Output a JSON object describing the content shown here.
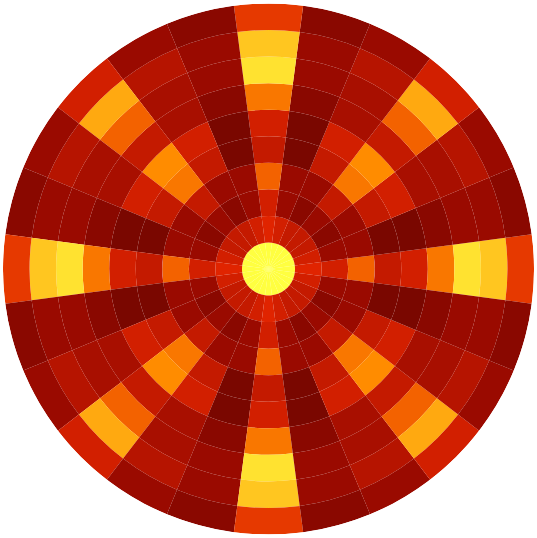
{
  "chart_data": {
    "type": "polar_heatmap",
    "r_edges": [
      0,
      0.1,
      0.2,
      0.3,
      0.4,
      0.5,
      0.6,
      0.7,
      0.8,
      0.9,
      1.0
    ],
    "theta_centers": [
      0,
      15,
      30,
      45,
      60,
      75,
      90,
      105,
      120,
      135,
      150,
      165,
      180,
      195,
      210,
      225,
      240,
      255,
      270,
      285,
      300,
      315,
      330,
      345
    ],
    "cells": [
      [
        1,
        1,
        1,
        1,
        1,
        1,
        1,
        1,
        1,
        1,
        1,
        1,
        1,
        1,
        1,
        1,
        1,
        1,
        1,
        1,
        1,
        1,
        1,
        1
      ],
      [
        0.55,
        0.5,
        0.45,
        0.45,
        0.45,
        0.5,
        0.55,
        0.5,
        0.45,
        0.45,
        0.45,
        0.5,
        0.55,
        0.5,
        0.45,
        0.45,
        0.45,
        0.5,
        0.55,
        0.5,
        0.45,
        0.45,
        0.45,
        0.5
      ],
      [
        0.5,
        0.3,
        0.25,
        0.3,
        0.25,
        0.3,
        0.5,
        0.3,
        0.25,
        0.3,
        0.25,
        0.3,
        0.5,
        0.3,
        0.25,
        0.3,
        0.25,
        0.3,
        0.5,
        0.3,
        0.25,
        0.3,
        0.25,
        0.3
      ],
      [
        0.7,
        0.3,
        0.3,
        0.45,
        0.3,
        0.3,
        0.7,
        0.3,
        0.3,
        0.45,
        0.3,
        0.3,
        0.7,
        0.3,
        0.3,
        0.45,
        0.3,
        0.3,
        0.7,
        0.3,
        0.3,
        0.45,
        0.3,
        0.3
      ],
      [
        0.45,
        0.2,
        0.45,
        0.75,
        0.45,
        0.2,
        0.45,
        0.2,
        0.45,
        0.75,
        0.45,
        0.2,
        0.45,
        0.2,
        0.45,
        0.75,
        0.45,
        0.2,
        0.45,
        0.2,
        0.45,
        0.75,
        0.45,
        0.2
      ],
      [
        0.5,
        0.2,
        0.5,
        0.8,
        0.5,
        0.2,
        0.5,
        0.2,
        0.5,
        0.8,
        0.5,
        0.2,
        0.5,
        0.2,
        0.5,
        0.8,
        0.5,
        0.2,
        0.5,
        0.2,
        0.5,
        0.8,
        0.5,
        0.2
      ],
      [
        0.75,
        0.25,
        0.35,
        0.45,
        0.35,
        0.25,
        0.75,
        0.25,
        0.35,
        0.45,
        0.35,
        0.25,
        0.75,
        0.25,
        0.35,
        0.45,
        0.35,
        0.25,
        0.75,
        0.25,
        0.35,
        0.45,
        0.35,
        0.25
      ],
      [
        0.95,
        0.3,
        0.35,
        0.7,
        0.35,
        0.3,
        0.95,
        0.3,
        0.35,
        0.7,
        0.35,
        0.3,
        0.95,
        0.3,
        0.35,
        0.7,
        0.35,
        0.3,
        0.95,
        0.3,
        0.35,
        0.7,
        0.35,
        0.3
      ],
      [
        0.9,
        0.3,
        0.4,
        0.85,
        0.4,
        0.3,
        0.9,
        0.3,
        0.4,
        0.85,
        0.4,
        0.3,
        0.9,
        0.3,
        0.4,
        0.85,
        0.4,
        0.3,
        0.9,
        0.3,
        0.4,
        0.85,
        0.4,
        0.3
      ],
      [
        0.6,
        0.25,
        0.3,
        0.5,
        0.3,
        0.25,
        0.6,
        0.25,
        0.3,
        0.5,
        0.3,
        0.25,
        0.6,
        0.25,
        0.3,
        0.5,
        0.3,
        0.25,
        0.6,
        0.25,
        0.3,
        0.5,
        0.3,
        0.25
      ]
    ],
    "color_range": [
      0,
      1
    ],
    "tick_labels": false,
    "grid": false
  }
}
